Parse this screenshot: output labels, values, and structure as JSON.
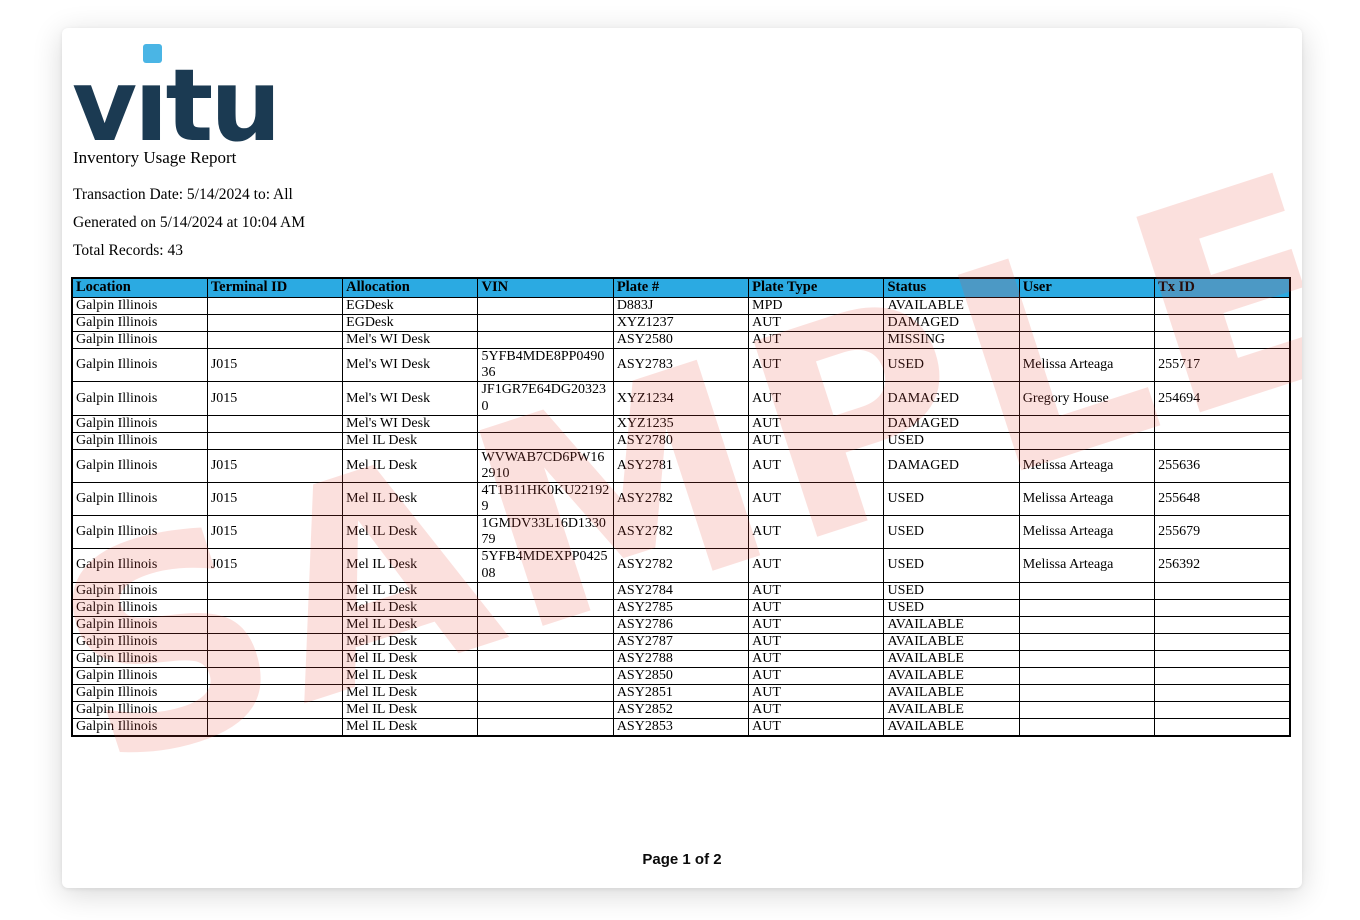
{
  "logo": {
    "text": "vitu",
    "navy": "#1B3A52",
    "dot_blue": "#4AB5E5"
  },
  "report": {
    "title": "Inventory Usage Report",
    "transaction_date_line": "Transaction Date: 5/14/2024 to: All",
    "generated_line": "Generated on 5/14/2024 at 10:04 AM",
    "total_records_line": "Total Records: 43"
  },
  "watermark": {
    "text": "SAMPLE",
    "color": "#EB4B3C",
    "opacity": "0.17"
  },
  "table": {
    "header_bg": "#2BAAE2",
    "columns": [
      "Location",
      "Terminal ID",
      "Allocation",
      "VIN",
      "Plate #",
      "Plate Type",
      "Status",
      "User",
      "Tx ID"
    ],
    "rows": [
      [
        "Galpin Illinois",
        "",
        "EGDesk",
        "",
        "D883J",
        "MPD",
        "AVAILABLE",
        "",
        ""
      ],
      [
        "Galpin Illinois",
        "",
        "EGDesk",
        "",
        "XYZ1237",
        "AUT",
        "DAMAGED",
        "",
        ""
      ],
      [
        "Galpin Illinois",
        "",
        "Mel's WI Desk",
        "",
        "ASY2580",
        "AUT",
        "MISSING",
        "",
        ""
      ],
      [
        "Galpin Illinois",
        "J015",
        "Mel's WI Desk",
        "5YFB4MDE8PP049036",
        "ASY2783",
        "AUT",
        "USED",
        "Melissa Arteaga",
        "255717"
      ],
      [
        "Galpin Illinois",
        "J015",
        "Mel's WI Desk",
        "JF1GR7E64DG203230",
        "XYZ1234",
        "AUT",
        "DAMAGED",
        "Gregory House",
        "254694"
      ],
      [
        "Galpin Illinois",
        "",
        "Mel's WI Desk",
        "",
        "XYZ1235",
        "AUT",
        "DAMAGED",
        "",
        ""
      ],
      [
        "Galpin Illinois",
        "",
        "Mel IL Desk",
        "",
        "ASY2780",
        "AUT",
        "USED",
        "",
        ""
      ],
      [
        "Galpin Illinois",
        "J015",
        "Mel IL Desk",
        "WVWAB7CD6PW162910",
        "ASY2781",
        "AUT",
        "DAMAGED",
        "Melissa Arteaga",
        "255636"
      ],
      [
        "Galpin Illinois",
        "J015",
        "Mel IL Desk",
        "4T1B11HK0KU221929",
        "ASY2782",
        "AUT",
        "USED",
        "Melissa Arteaga",
        "255648"
      ],
      [
        "Galpin Illinois",
        "J015",
        "Mel IL Desk",
        "1GMDV33L16D133079",
        "ASY2782",
        "AUT",
        "USED",
        "Melissa Arteaga",
        "255679"
      ],
      [
        "Galpin Illinois",
        "J015",
        "Mel IL Desk",
        "5YFB4MDEXPP042508",
        "ASY2782",
        "AUT",
        "USED",
        "Melissa Arteaga",
        "256392"
      ],
      [
        "Galpin Illinois",
        "",
        "Mel IL Desk",
        "",
        "ASY2784",
        "AUT",
        "USED",
        "",
        ""
      ],
      [
        "Galpin Illinois",
        "",
        "Mel IL Desk",
        "",
        "ASY2785",
        "AUT",
        "USED",
        "",
        ""
      ],
      [
        "Galpin Illinois",
        "",
        "Mel IL Desk",
        "",
        "ASY2786",
        "AUT",
        "AVAILABLE",
        "",
        ""
      ],
      [
        "Galpin Illinois",
        "",
        "Mel IL Desk",
        "",
        "ASY2787",
        "AUT",
        "AVAILABLE",
        "",
        ""
      ],
      [
        "Galpin Illinois",
        "",
        "Mel IL Desk",
        "",
        "ASY2788",
        "AUT",
        "AVAILABLE",
        "",
        ""
      ],
      [
        "Galpin Illinois",
        "",
        "Mel IL Desk",
        "",
        "ASY2850",
        "AUT",
        "AVAILABLE",
        "",
        ""
      ],
      [
        "Galpin Illinois",
        "",
        "Mel IL Desk",
        "",
        "ASY2851",
        "AUT",
        "AVAILABLE",
        "",
        ""
      ],
      [
        "Galpin Illinois",
        "",
        "Mel IL Desk",
        "",
        "ASY2852",
        "AUT",
        "AVAILABLE",
        "",
        ""
      ],
      [
        "Galpin Illinois",
        "",
        "Mel IL Desk",
        "",
        "ASY2853",
        "AUT",
        "AVAILABLE",
        "",
        ""
      ]
    ]
  },
  "footer": {
    "page_label": "Page 1 of 2"
  }
}
